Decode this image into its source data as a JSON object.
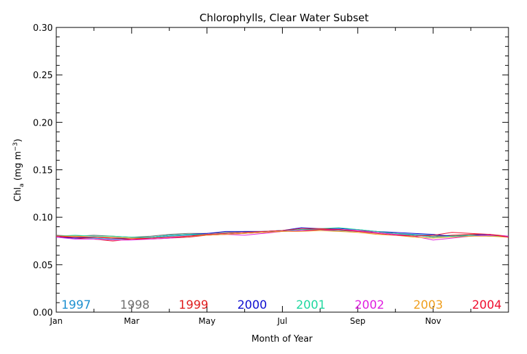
{
  "chart_data": {
    "type": "line",
    "title": "Chlorophylls, Clear Water Subset",
    "xlabel": "Month of Year",
    "ylabel": {
      "main": "Chl",
      "sub": "a",
      "unit_prefix": " (mg m",
      "unit_sup": "−3",
      "unit_suffix": ")"
    },
    "xlim": [
      0,
      12
    ],
    "ylim": [
      0.0,
      0.3
    ],
    "x_ticks": [
      {
        "label": "Jan",
        "value": 0
      },
      {
        "label": "Mar",
        "value": 2
      },
      {
        "label": "May",
        "value": 4
      },
      {
        "label": "Jul",
        "value": 6
      },
      {
        "label": "Sep",
        "value": 8
      },
      {
        "label": "Nov",
        "value": 10
      }
    ],
    "y_ticks": [
      {
        "label": "0.00",
        "value": 0.0
      },
      {
        "label": "0.05",
        "value": 0.05
      },
      {
        "label": "0.10",
        "value": 0.1
      },
      {
        "label": "0.15",
        "value": 0.15
      },
      {
        "label": "0.20",
        "value": 0.2
      },
      {
        "label": "0.25",
        "value": 0.25
      },
      {
        "label": "0.30",
        "value": 0.3
      }
    ],
    "x": [
      0,
      0.5,
      1,
      1.5,
      2,
      2.5,
      3,
      3.5,
      4,
      4.5,
      5,
      5.5,
      6,
      6.5,
      7,
      7.5,
      8,
      8.5,
      9,
      9.5,
      10,
      10.5,
      11,
      11.5,
      12
    ],
    "series": [
      {
        "name": "1997",
        "color": "#1e90d0",
        "values": [
          0.08,
          0.079,
          0.078,
          0.077,
          0.077,
          0.078,
          0.08,
          0.081,
          0.082,
          0.083,
          0.084,
          0.085,
          0.086,
          0.087,
          0.087,
          0.086,
          0.085,
          0.084,
          0.083,
          0.082,
          0.081,
          0.08,
          0.08,
          0.081,
          0.08
        ]
      },
      {
        "name": "1998",
        "color": "#707070",
        "values": [
          0.081,
          0.08,
          0.081,
          0.08,
          0.079,
          0.08,
          0.082,
          0.083,
          0.083,
          0.084,
          0.085,
          0.085,
          0.086,
          0.087,
          0.086,
          0.086,
          0.085,
          0.084,
          0.082,
          0.081,
          0.08,
          0.081,
          0.081,
          0.08,
          0.08
        ]
      },
      {
        "name": "1999",
        "color": "#e02020",
        "values": [
          0.08,
          0.078,
          0.077,
          0.075,
          0.077,
          0.077,
          0.078,
          0.079,
          0.081,
          0.082,
          0.083,
          0.084,
          0.085,
          0.086,
          0.087,
          0.087,
          0.086,
          0.085,
          0.083,
          0.081,
          0.079,
          0.081,
          0.082,
          0.082,
          0.08
        ]
      },
      {
        "name": "2000",
        "color": "#1010d0",
        "values": [
          0.079,
          0.078,
          0.079,
          0.078,
          0.078,
          0.079,
          0.081,
          0.082,
          0.083,
          0.085,
          0.085,
          0.085,
          0.086,
          0.089,
          0.088,
          0.088,
          0.087,
          0.085,
          0.084,
          0.083,
          0.082,
          0.08,
          0.081,
          0.082,
          0.079
        ]
      },
      {
        "name": "2001",
        "color": "#20d8a0",
        "values": [
          0.08,
          0.081,
          0.08,
          0.08,
          0.079,
          0.079,
          0.081,
          0.082,
          0.082,
          0.083,
          0.084,
          0.085,
          0.086,
          0.087,
          0.088,
          0.089,
          0.087,
          0.085,
          0.083,
          0.081,
          0.079,
          0.08,
          0.081,
          0.08,
          0.08
        ]
      },
      {
        "name": "2002",
        "color": "#e020e0",
        "values": [
          0.079,
          0.077,
          0.077,
          0.076,
          0.076,
          0.077,
          0.078,
          0.08,
          0.081,
          0.082,
          0.081,
          0.083,
          0.085,
          0.086,
          0.086,
          0.087,
          0.086,
          0.084,
          0.082,
          0.08,
          0.076,
          0.078,
          0.08,
          0.081,
          0.08
        ]
      },
      {
        "name": "2003",
        "color": "#f0a020",
        "values": [
          0.08,
          0.08,
          0.079,
          0.079,
          0.078,
          0.078,
          0.079,
          0.08,
          0.081,
          0.082,
          0.083,
          0.084,
          0.085,
          0.085,
          0.086,
          0.085,
          0.084,
          0.082,
          0.081,
          0.079,
          0.078,
          0.079,
          0.08,
          0.08,
          0.079
        ]
      },
      {
        "name": "2004",
        "color": "#f01030",
        "values": [
          0.08,
          0.079,
          0.079,
          0.078,
          0.077,
          0.078,
          0.079,
          0.08,
          0.082,
          0.083,
          0.084,
          0.085,
          0.086,
          0.088,
          0.088,
          0.087,
          0.085,
          0.083,
          0.081,
          0.08,
          0.081,
          0.084,
          0.083,
          0.082,
          0.079
        ]
      }
    ],
    "legend": "bottom inside plot, one row of colored year labels",
    "grid": false
  }
}
